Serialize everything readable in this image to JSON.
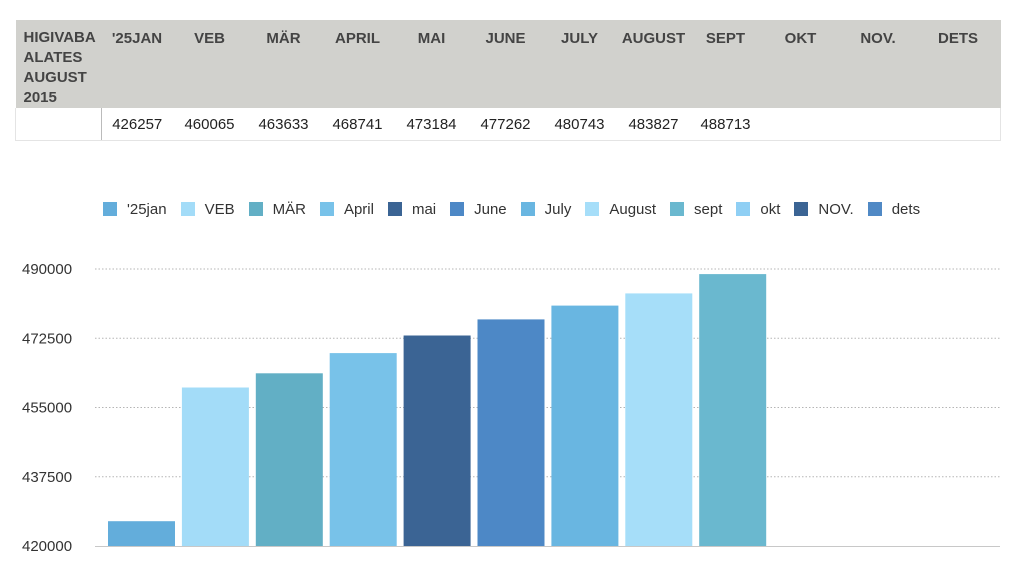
{
  "table": {
    "corner_header": "HIGIVABA ALATES AUGUST 2015",
    "headers": [
      "'25JAN",
      "VEB",
      "MÄR",
      "APRIL",
      "MAI",
      "JUNE",
      "JULY",
      "AUGUST",
      "SEPT",
      "OKT",
      "NOV.",
      "DETS"
    ],
    "row_label": "",
    "values": [
      "426257",
      "460065",
      "463633",
      "468741",
      "473184",
      "477262",
      "480743",
      "483827",
      "488713",
      "",
      "",
      ""
    ]
  },
  "chart_data": {
    "type": "bar",
    "categories": [
      "'25jan",
      "VEB",
      "MÄR",
      "April",
      "mai",
      "June",
      "July",
      "August",
      "sept",
      "okt",
      "NOV.",
      "dets"
    ],
    "values": [
      426257,
      460065,
      463633,
      468741,
      473184,
      477262,
      480743,
      483827,
      488713,
      null,
      null,
      null
    ],
    "colors": [
      "#63addb",
      "#a3dcf8",
      "#62afc5",
      "#78c2e9",
      "#3b6494",
      "#4d88c6",
      "#69b6e1",
      "#a6def9",
      "#6ab8cf",
      "#8fcff4",
      "#3b6494",
      "#5089c5"
    ],
    "ylim": [
      420000,
      490000
    ],
    "yticks": [
      "420000",
      "437500",
      "455000",
      "472500",
      "490000"
    ],
    "grid": true,
    "legend_position": "top"
  }
}
